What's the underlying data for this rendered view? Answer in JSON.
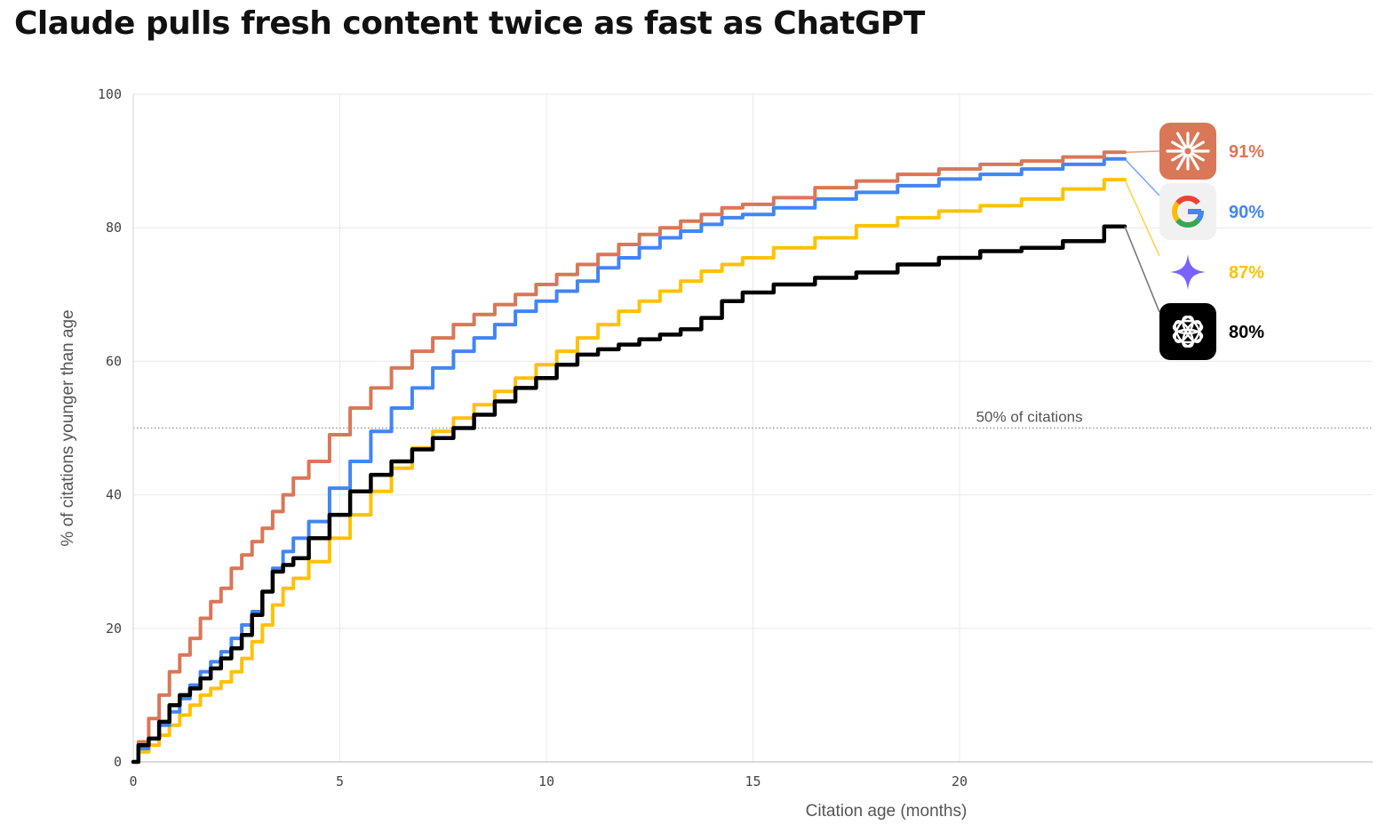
{
  "chart_data": {
    "type": "line",
    "title": "Claude pulls fresh content twice as fast as ChatGPT",
    "xlabel": "Citation age (months)",
    "ylabel": "% of citations younger than age",
    "xlim": [
      0,
      30
    ],
    "ylim": [
      0,
      100
    ],
    "xticks": [
      0,
      5,
      10,
      15,
      20
    ],
    "yticks": [
      0,
      20,
      40,
      60,
      80,
      100
    ],
    "grid": true,
    "reference_line": {
      "y": 50,
      "label": "50% of citations",
      "style": "dotted"
    },
    "series": [
      {
        "name": "Claude",
        "icon": "claude-logo-icon",
        "color": "#D97757",
        "end_label": "91%",
        "x": [
          0,
          0.25,
          0.5,
          0.75,
          1,
          1.25,
          1.5,
          1.75,
          2,
          2.25,
          2.5,
          2.75,
          3,
          3.25,
          3.5,
          3.75,
          4,
          4.5,
          5,
          5.5,
          6,
          6.5,
          7,
          7.5,
          8,
          8.5,
          9,
          9.5,
          10,
          10.5,
          11,
          11.5,
          12,
          12.5,
          13,
          13.5,
          14,
          14.5,
          15,
          16,
          17,
          18,
          19,
          20,
          21,
          22,
          23,
          24
        ],
        "y": [
          0,
          3,
          6.5,
          10,
          13.5,
          16,
          18.5,
          21.5,
          24,
          26,
          29,
          31,
          33,
          35,
          37.5,
          40,
          42.5,
          45,
          49,
          53,
          56,
          59,
          61.5,
          63.5,
          65.5,
          67,
          68.5,
          70,
          71.5,
          73,
          74.5,
          76,
          77.5,
          79,
          80,
          81,
          82,
          83,
          83.5,
          84.5,
          86,
          87,
          88,
          88.8,
          89.5,
          90,
          90.6,
          91.3
        ]
      },
      {
        "name": "Google",
        "icon": "google-logo-icon",
        "color": "#4285F4",
        "end_label": "90%",
        "x": [
          0,
          0.25,
          0.5,
          0.75,
          1,
          1.25,
          1.5,
          1.75,
          2,
          2.25,
          2.5,
          2.75,
          3,
          3.25,
          3.5,
          3.75,
          4,
          4.5,
          5,
          5.5,
          6,
          6.5,
          7,
          7.5,
          8,
          8.5,
          9,
          9.5,
          10,
          10.5,
          11,
          11.5,
          12,
          12.5,
          13,
          13.5,
          14,
          14.5,
          15,
          16,
          17,
          18,
          19,
          20,
          21,
          22,
          23,
          24
        ],
        "y": [
          0,
          2,
          3.5,
          5.5,
          7.5,
          9.5,
          11.5,
          13.5,
          15,
          16.5,
          18.5,
          20.5,
          22.5,
          25.5,
          29,
          31.5,
          33.5,
          36,
          41,
          45,
          49.5,
          53,
          56,
          59,
          61.5,
          63.5,
          65.5,
          67.5,
          69,
          70.5,
          72,
          74,
          75.5,
          77,
          78.5,
          79.5,
          80.5,
          81.5,
          82,
          83,
          84.3,
          85.3,
          86.3,
          87.3,
          88,
          88.8,
          89.5,
          90.3
        ]
      },
      {
        "name": "Gemini",
        "icon": "gemini-logo-icon",
        "color": "#FFC107",
        "end_label": "87%",
        "x": [
          0,
          0.25,
          0.5,
          0.75,
          1,
          1.25,
          1.5,
          1.75,
          2,
          2.25,
          2.5,
          2.75,
          3,
          3.25,
          3.5,
          3.75,
          4,
          4.5,
          5,
          5.5,
          6,
          6.5,
          7,
          7.5,
          8,
          8.5,
          9,
          9.5,
          10,
          10.5,
          11,
          11.5,
          12,
          12.5,
          13,
          13.5,
          14,
          14.5,
          15,
          16,
          17,
          18,
          19,
          20,
          21,
          22,
          23,
          24
        ],
        "y": [
          0,
          1.5,
          2.5,
          4,
          5.5,
          7,
          8.5,
          10,
          11,
          12,
          13.5,
          15.5,
          18,
          20.5,
          23.5,
          26,
          27.5,
          30,
          33.5,
          37,
          40.5,
          44,
          47,
          49.5,
          51.5,
          53.5,
          55.5,
          57.5,
          59.5,
          61.5,
          63.5,
          65.5,
          67.5,
          69,
          70.5,
          72,
          73.5,
          74.5,
          75.5,
          77,
          78.5,
          80.3,
          81.5,
          82.5,
          83.3,
          84.3,
          85.8,
          87.2
        ]
      },
      {
        "name": "ChatGPT",
        "icon": "openai-logo-icon",
        "color": "#000000",
        "end_label": "80%",
        "x": [
          0,
          0.25,
          0.5,
          0.75,
          1,
          1.25,
          1.5,
          1.75,
          2,
          2.25,
          2.5,
          2.75,
          3,
          3.25,
          3.5,
          3.75,
          4,
          4.5,
          5,
          5.5,
          6,
          6.5,
          7,
          7.5,
          8,
          8.5,
          9,
          9.5,
          10,
          10.5,
          11,
          11.5,
          12,
          12.5,
          13,
          13.5,
          14,
          14.5,
          15,
          16,
          17,
          18,
          19,
          20,
          21,
          22,
          23,
          24
        ],
        "y": [
          0,
          2.5,
          3.5,
          6,
          8.5,
          10,
          11,
          12.5,
          14,
          15.5,
          17,
          19,
          22,
          25.5,
          28.5,
          29.5,
          30.5,
          33.5,
          37,
          40.5,
          43,
          45,
          46.8,
          48.5,
          50,
          52,
          54,
          56,
          57.5,
          59.5,
          61,
          61.8,
          62.5,
          63.3,
          64,
          64.8,
          66.5,
          69,
          70.3,
          71.5,
          72.5,
          73.3,
          74.5,
          75.5,
          76.5,
          77,
          78,
          80.2
        ]
      }
    ]
  }
}
